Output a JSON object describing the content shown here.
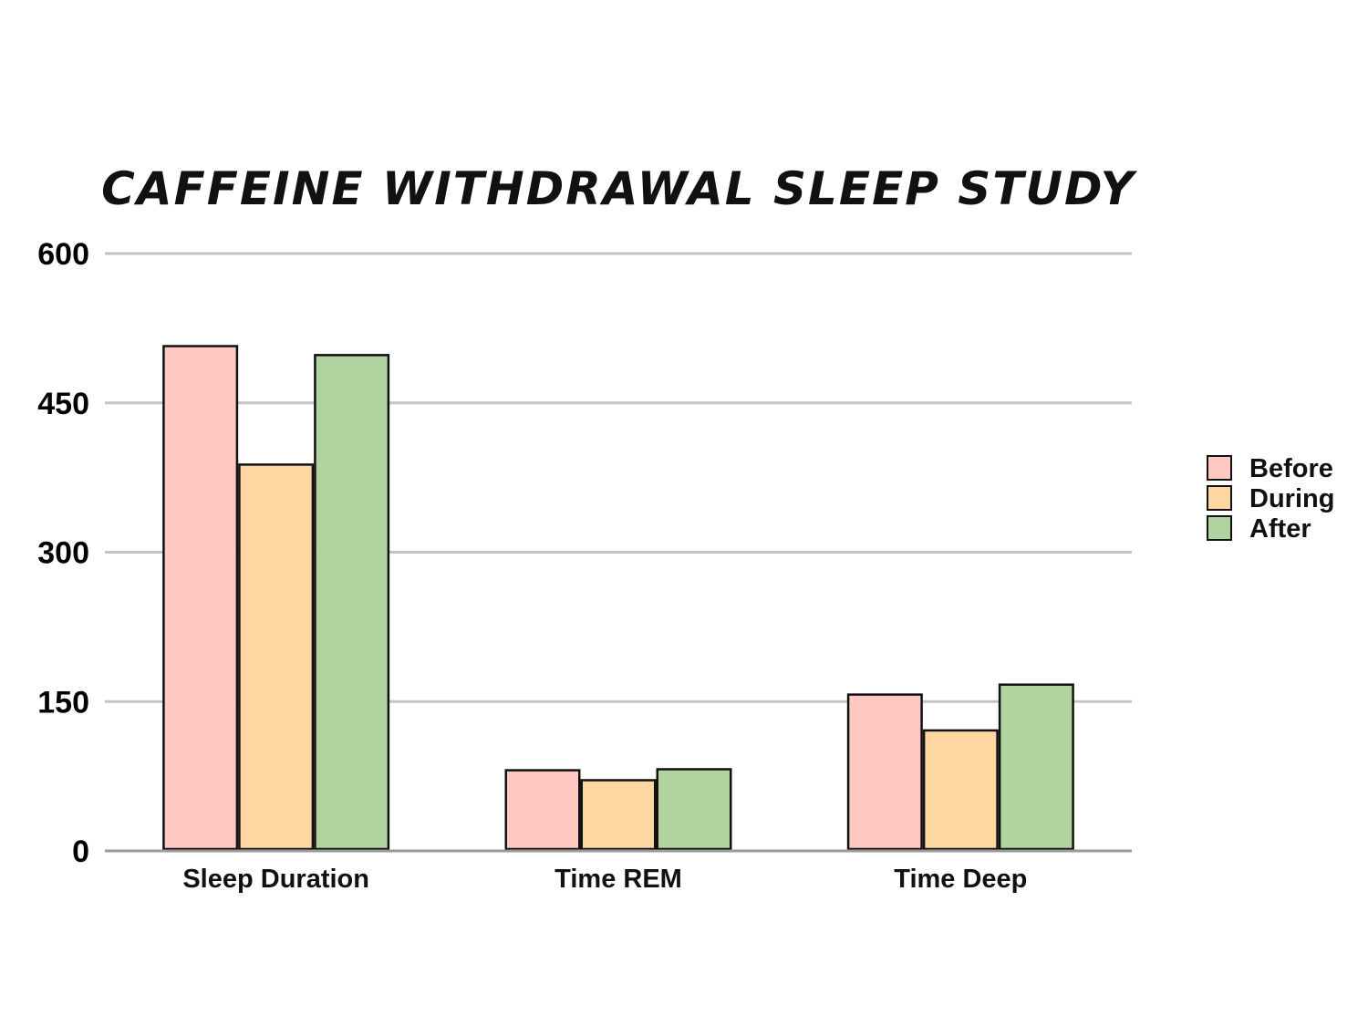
{
  "chart_data": {
    "type": "bar",
    "title": "CAFFEINE WITHDRAWAL SLEEP STUDY",
    "categories": [
      "Sleep Duration",
      "Time REM",
      "Time Deep"
    ],
    "series": [
      {
        "name": "Before",
        "values": [
          507,
          81,
          157
        ],
        "color": "#ffc8c2"
      },
      {
        "name": "During",
        "values": [
          388,
          71,
          121
        ],
        "color": "#fdd6a2"
      },
      {
        "name": "After",
        "values": [
          498,
          82,
          167
        ],
        "color": "#b0d39f"
      }
    ],
    "yticks": [
      0,
      150,
      300,
      450,
      600
    ],
    "ylim": [
      0,
      600
    ],
    "legend_position": "right",
    "grid": true
  }
}
